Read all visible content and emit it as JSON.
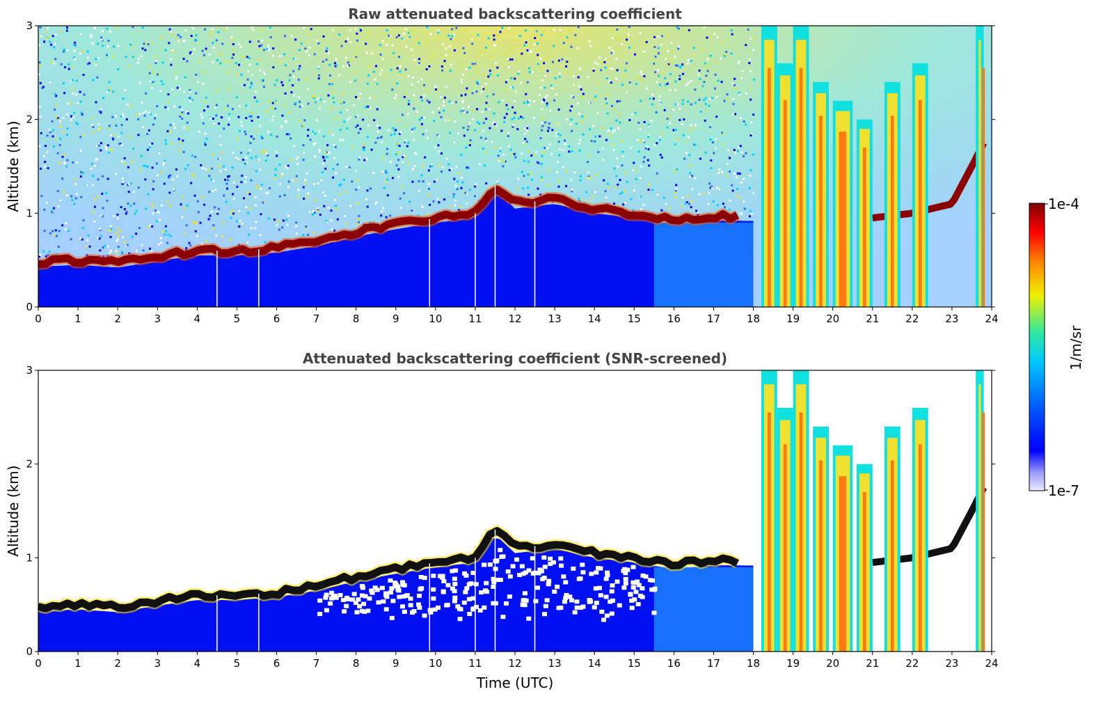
{
  "chart_data": [
    {
      "type": "heatmap",
      "title": "Raw attenuated backscattering coefficient",
      "xlabel": "",
      "ylabel": "Altitude (km)",
      "xlim": [
        0,
        24
      ],
      "ylim": [
        0,
        3
      ],
      "xticks": [
        "0",
        "1",
        "2",
        "3",
        "4",
        "5",
        "6",
        "7",
        "8",
        "9",
        "10",
        "11",
        "12",
        "13",
        "14",
        "15",
        "16",
        "17",
        "18",
        "19",
        "20",
        "21",
        "22",
        "23",
        "24"
      ],
      "yticks": [
        "0",
        "1",
        "2",
        "3"
      ],
      "screened": false,
      "layer_height_km": [
        [
          0,
          0.48
        ],
        [
          1,
          0.5
        ],
        [
          2,
          0.47
        ],
        [
          3,
          0.54
        ],
        [
          4,
          0.6
        ],
        [
          5,
          0.6
        ],
        [
          6,
          0.63
        ],
        [
          7,
          0.7
        ],
        [
          8,
          0.8
        ],
        [
          9,
          0.88
        ],
        [
          10,
          0.95
        ],
        [
          11,
          1.0
        ],
        [
          11.5,
          1.3
        ],
        [
          12,
          1.1
        ],
        [
          13,
          1.15
        ],
        [
          14,
          1.05
        ],
        [
          15,
          1.0
        ],
        [
          16,
          0.93
        ],
        [
          17,
          0.97
        ],
        [
          17.5,
          0.97
        ],
        [
          21,
          0.95
        ],
        [
          22,
          1.0
        ],
        [
          23,
          1.1
        ],
        [
          23.5,
          1.5
        ],
        [
          23.8,
          1.75
        ]
      ],
      "missing_profiles_utc": [
        4.5,
        5.55,
        9.85,
        11.0,
        11.5,
        12.5
      ]
    },
    {
      "type": "heatmap",
      "title": "Attenuated backscattering coefficient (SNR-screened)",
      "xlabel": "Time (UTC)",
      "ylabel": "Altitude (km)",
      "xlim": [
        0,
        24
      ],
      "ylim": [
        0,
        3
      ],
      "xticks": [
        "0",
        "1",
        "2",
        "3",
        "4",
        "5",
        "6",
        "7",
        "8",
        "9",
        "10",
        "11",
        "12",
        "13",
        "14",
        "15",
        "16",
        "17",
        "18",
        "19",
        "20",
        "21",
        "22",
        "23",
        "24"
      ],
      "yticks": [
        "0",
        "1",
        "2",
        "3"
      ],
      "screened": true
    }
  ],
  "colorbar": {
    "label": "1/m/sr",
    "max_label": "1e-4",
    "min_label": "1e-7",
    "range": [
      1e-07,
      0.0001
    ],
    "scale": "log",
    "colors": [
      "#e8e8ff",
      "#0000ff",
      "#00a0ff",
      "#00e8e0",
      "#f0f000",
      "#ff8000",
      "#ff0000",
      "#800000"
    ]
  }
}
